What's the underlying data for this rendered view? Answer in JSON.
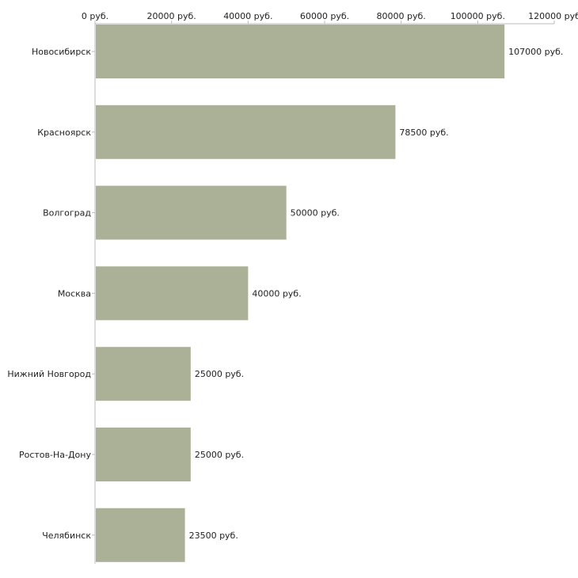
{
  "chart_data": {
    "type": "bar",
    "orientation": "horizontal",
    "categories": [
      "Новосибирск",
      "Красноярск",
      "Волгоград",
      "Москва",
      "Нижний Новгород",
      "Ростов-На-Дону",
      "Челябинск"
    ],
    "values": [
      107000,
      78500,
      50000,
      40000,
      25000,
      25000,
      23500
    ],
    "value_labels": [
      "107000 руб.",
      "78500 руб.",
      "50000 руб.",
      "40000 руб.",
      "25000 руб.",
      "25000 руб.",
      "23500 руб."
    ],
    "xlim": [
      0,
      120000
    ],
    "x_ticks": [
      0,
      20000,
      40000,
      60000,
      80000,
      100000,
      120000
    ],
    "x_tick_labels": [
      "0 руб.",
      "20000 руб.",
      "40000 руб.",
      "60000 руб.",
      "80000 руб.",
      "100000 руб.",
      "120000 руб"
    ],
    "title": "",
    "xlabel": "",
    "ylabel": "",
    "grid": false,
    "axis_position": "top",
    "bar_color": "#abb197"
  }
}
